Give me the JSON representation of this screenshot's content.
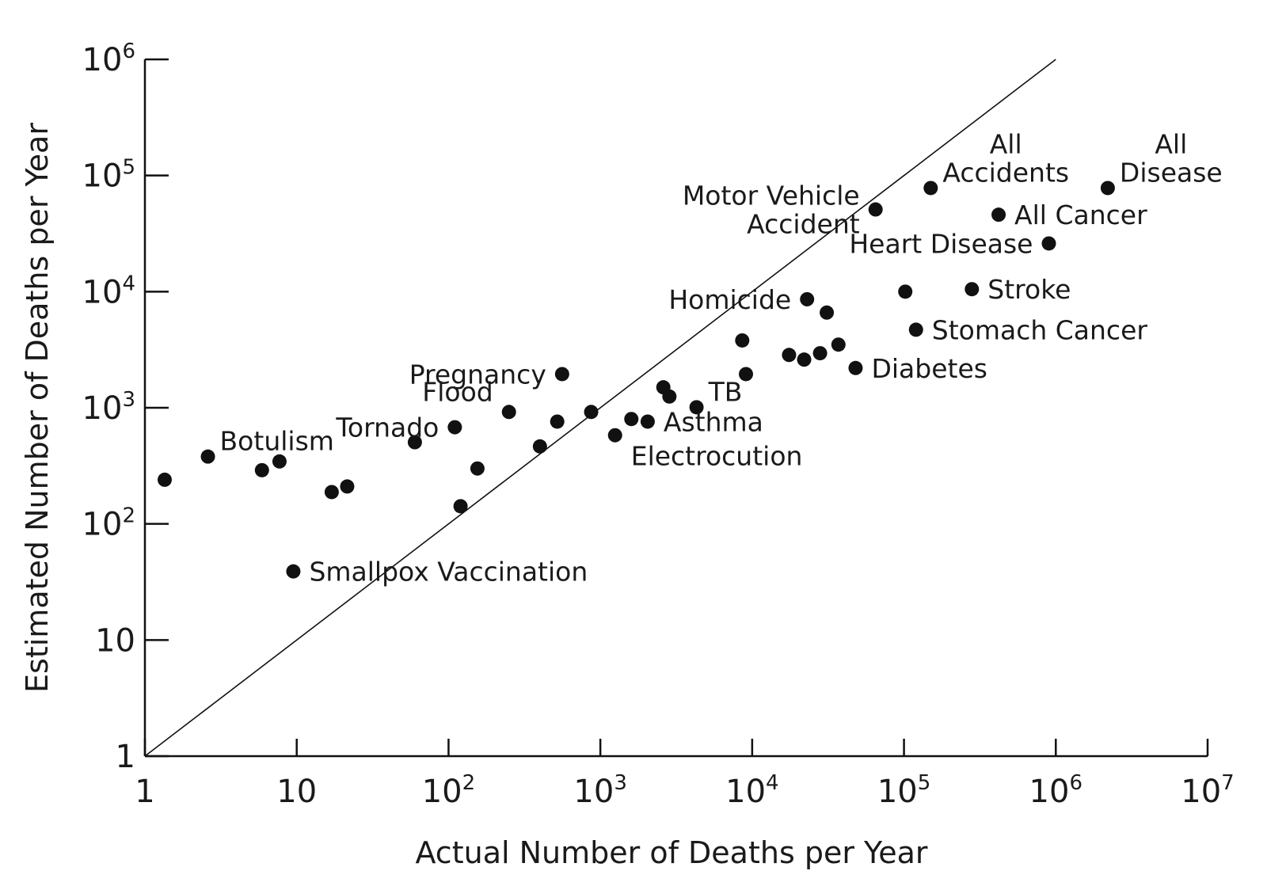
{
  "chart_data": {
    "type": "scatter",
    "title": "",
    "xlabel": "Actual Number of Deaths per Year",
    "ylabel": "Estimated Number of Deaths per Year",
    "xscale": "log",
    "yscale": "log",
    "xlim": [
      1,
      10000000
    ],
    "ylim": [
      1,
      1000000
    ],
    "grid": false,
    "legend": "none",
    "x_ticks": [
      {
        "value": 1,
        "base": "1",
        "exp": ""
      },
      {
        "value": 10,
        "base": "10",
        "exp": ""
      },
      {
        "value": 100,
        "base": "10",
        "exp": "2"
      },
      {
        "value": 1000,
        "base": "10",
        "exp": "3"
      },
      {
        "value": 10000,
        "base": "10",
        "exp": "4"
      },
      {
        "value": 100000,
        "base": "10",
        "exp": "5"
      },
      {
        "value": 1000000,
        "base": "10",
        "exp": "6"
      },
      {
        "value": 10000000,
        "base": "10",
        "exp": "7"
      }
    ],
    "y_ticks": [
      {
        "value": 1,
        "base": "1",
        "exp": ""
      },
      {
        "value": 10,
        "base": "10",
        "exp": ""
      },
      {
        "value": 100,
        "base": "10",
        "exp": "2"
      },
      {
        "value": 1000,
        "base": "10",
        "exp": "3"
      },
      {
        "value": 10000,
        "base": "10",
        "exp": "4"
      },
      {
        "value": 100000,
        "base": "10",
        "exp": "5"
      },
      {
        "value": 1000000,
        "base": "10",
        "exp": "6"
      }
    ],
    "reference_line": {
      "from": [
        1,
        1
      ],
      "to": [
        1000000,
        1000000
      ]
    },
    "labeled_points": [
      {
        "label": [
          "Smallpox Vaccination"
        ],
        "x": 9.5,
        "y": 39,
        "anchor": "right"
      },
      {
        "label": [
          "Botulism"
        ],
        "x": 2.6,
        "y": 380,
        "anchor": "right-above"
      },
      {
        "label": [
          "Tornado"
        ],
        "x": 110,
        "y": 680,
        "anchor": "left"
      },
      {
        "label": [
          "Flood"
        ],
        "x": 250,
        "y": 920,
        "anchor": "left-above"
      },
      {
        "label": [
          "Pregnancy"
        ],
        "x": 560,
        "y": 1950,
        "anchor": "left"
      },
      {
        "label": [
          "Electrocution"
        ],
        "x": 1250,
        "y": 580,
        "anchor": "right-below"
      },
      {
        "label": [
          "Asthma"
        ],
        "x": 2050,
        "y": 760,
        "anchor": "right"
      },
      {
        "label": [
          "TB"
        ],
        "x": 4300,
        "y": 1010,
        "anchor": "right-above"
      },
      {
        "label": [
          "Homicide"
        ],
        "x": 23000,
        "y": 8600,
        "anchor": "left"
      },
      {
        "label": [
          "Diabetes"
        ],
        "x": 48000,
        "y": 2200,
        "anchor": "right"
      },
      {
        "label": [
          "Stomach Cancer"
        ],
        "x": 120000,
        "y": 4700,
        "anchor": "right"
      },
      {
        "label": [
          "Stroke"
        ],
        "x": 280000,
        "y": 10500,
        "anchor": "right"
      },
      {
        "label": [
          "Heart Disease"
        ],
        "x": 900000,
        "y": 26000,
        "anchor": "left"
      },
      {
        "label": [
          "All Cancer"
        ],
        "x": 420000,
        "y": 46000,
        "anchor": "right"
      },
      {
        "label": [
          "Motor Vehicle",
          "Accident"
        ],
        "x": 65000,
        "y": 51000,
        "anchor": "left"
      },
      {
        "label": [
          "All",
          "Accidents"
        ],
        "x": 150000,
        "y": 78000,
        "anchor": "right-above"
      },
      {
        "label": [
          "All",
          "Disease"
        ],
        "x": 2200000,
        "y": 78000,
        "anchor": "right-above"
      }
    ],
    "unlabeled_points": [
      {
        "x": 1.35,
        "y": 240
      },
      {
        "x": 5.9,
        "y": 290
      },
      {
        "x": 7.7,
        "y": 345
      },
      {
        "x": 17,
        "y": 188
      },
      {
        "x": 21.5,
        "y": 210
      },
      {
        "x": 60,
        "y": 505
      },
      {
        "x": 120,
        "y": 142
      },
      {
        "x": 155,
        "y": 300
      },
      {
        "x": 400,
        "y": 465
      },
      {
        "x": 520,
        "y": 760
      },
      {
        "x": 870,
        "y": 920
      },
      {
        "x": 1600,
        "y": 800
      },
      {
        "x": 2600,
        "y": 1500
      },
      {
        "x": 2850,
        "y": 1250
      },
      {
        "x": 8600,
        "y": 3800
      },
      {
        "x": 9100,
        "y": 1950
      },
      {
        "x": 17500,
        "y": 2850
      },
      {
        "x": 22000,
        "y": 2600
      },
      {
        "x": 28000,
        "y": 2950
      },
      {
        "x": 31000,
        "y": 6600
      },
      {
        "x": 37000,
        "y": 3500
      },
      {
        "x": 102000,
        "y": 10000
      }
    ]
  }
}
